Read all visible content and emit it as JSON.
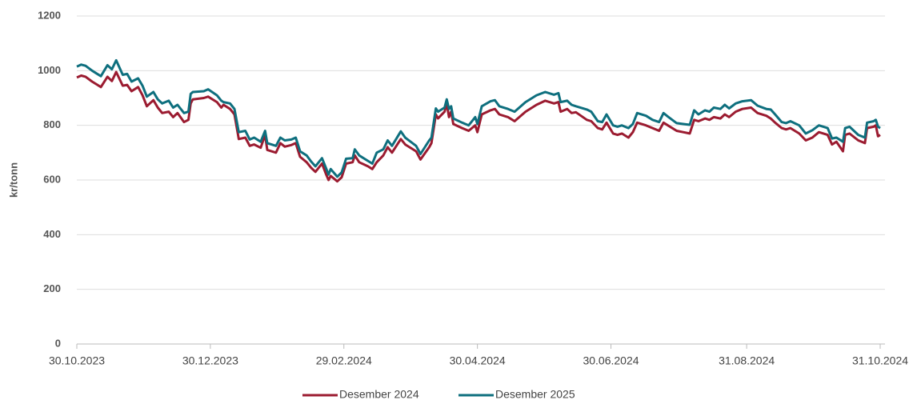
{
  "chart_data": {
    "type": "line",
    "y_label": "kr/tonn",
    "ylim": [
      0,
      1200
    ],
    "yticks": [
      0,
      200,
      400,
      600,
      800,
      1000,
      1200
    ],
    "xlim": [
      "30.10.2023",
      "31.10.2024"
    ],
    "xticks": [
      "30.10.2023",
      "30.12.2023",
      "29.02.2024",
      "30.04.2024",
      "30.06.2024",
      "31.08.2024",
      "31.10.2024"
    ],
    "grid": true,
    "legend": "bottom",
    "x": [
      "30.10.2023",
      "01.11.2023",
      "03.11.2023",
      "06.11.2023",
      "08.11.2023",
      "10.11.2023",
      "13.11.2023",
      "15.11.2023",
      "17.11.2023",
      "20.11.2023",
      "22.11.2023",
      "24.11.2023",
      "27.11.2023",
      "29.11.2023",
      "01.12.2023",
      "04.12.2023",
      "06.12.2023",
      "08.12.2023",
      "11.12.2023",
      "13.12.2023",
      "15.12.2023",
      "18.12.2023",
      "20.12.2023",
      "21.12.2023",
      "22.12.2023",
      "27.12.2023",
      "29.12.2023",
      "02.01.2024",
      "04.01.2024",
      "05.01.2024",
      "08.01.2024",
      "10.01.2024",
      "12.01.2024",
      "15.01.2024",
      "17.01.2024",
      "19.01.2024",
      "22.01.2024",
      "24.01.2024",
      "25.01.2024",
      "29.01.2024",
      "31.01.2024",
      "02.02.2024",
      "05.02.2024",
      "07.02.2024",
      "09.02.2024",
      "12.02.2024",
      "14.02.2024",
      "16.02.2024",
      "19.02.2024",
      "21.02.2024",
      "22.02.2024",
      "23.02.2024",
      "26.02.2024",
      "28.02.2024",
      "01.03.2024",
      "04.03.2024",
      "05.03.2024",
      "07.03.2024",
      "11.03.2024",
      "13.03.2024",
      "15.03.2024",
      "18.03.2024",
      "20.03.2024",
      "22.03.2024",
      "26.03.2024",
      "28.03.2024",
      "02.04.2024",
      "04.04.2024",
      "08.04.2024",
      "09.04.2024",
      "11.04.2024",
      "12.04.2024",
      "15.04.2024",
      "16.04.2024",
      "17.04.2024",
      "18.04.2024",
      "19.04.2024",
      "23.04.2024",
      "26.04.2024",
      "29.04.2024",
      "30.04.2024",
      "02.05.2024",
      "06.05.2024",
      "08.05.2024",
      "10.05.2024",
      "14.05.2024",
      "17.05.2024",
      "22.05.2024",
      "27.05.2024",
      "31.05.2024",
      "04.06.2024",
      "06.06.2024",
      "07.06.2024",
      "10.06.2024",
      "12.06.2024",
      "14.06.2024",
      "19.06.2024",
      "21.06.2024",
      "24.06.2024",
      "26.06.2024",
      "28.06.2024",
      "01.07.2024",
      "03.07.2024",
      "05.07.2024",
      "08.07.2024",
      "10.07.2024",
      "12.07.2024",
      "16.07.2024",
      "19.07.2024",
      "22.07.2024",
      "24.07.2024",
      "26.07.2024",
      "30.07.2024",
      "02.08.2024",
      "05.08.2024",
      "07.08.2024",
      "09.08.2024",
      "12.08.2024",
      "14.08.2024",
      "16.08.2024",
      "19.08.2024",
      "21.08.2024",
      "23.08.2024",
      "26.08.2024",
      "29.08.2024",
      "02.09.2024",
      "05.09.2024",
      "09.09.2024",
      "11.09.2024",
      "13.09.2024",
      "16.09.2024",
      "18.09.2024",
      "20.09.2024",
      "24.09.2024",
      "27.09.2024",
      "30.09.2024",
      "03.10.2024",
      "07.10.2024",
      "09.10.2024",
      "11.10.2024",
      "14.10.2024",
      "15.10.2024",
      "17.10.2024",
      "21.10.2024",
      "24.10.2024",
      "25.10.2024",
      "28.10.2024",
      "29.10.2024",
      "30.10.2024",
      "31.10.2024"
    ],
    "series": [
      {
        "name": "Desember 2024",
        "color": "#9b1b30",
        "values": [
          975,
          982,
          978,
          960,
          950,
          940,
          978,
          962,
          995,
          945,
          948,
          925,
          940,
          910,
          870,
          892,
          865,
          845,
          850,
          830,
          845,
          812,
          820,
          880,
          895,
          900,
          905,
          885,
          865,
          875,
          860,
          840,
          750,
          755,
          725,
          730,
          718,
          765,
          710,
          700,
          735,
          722,
          728,
          735,
          685,
          665,
          645,
          630,
          660,
          618,
          600,
          615,
          595,
          610,
          660,
          665,
          690,
          665,
          650,
          640,
          665,
          690,
          720,
          700,
          750,
          730,
          705,
          675,
          720,
          735,
          840,
          825,
          850,
          880,
          830,
          850,
          805,
          790,
          780,
          800,
          775,
          840,
          855,
          860,
          840,
          830,
          815,
          850,
          875,
          890,
          880,
          885,
          850,
          860,
          845,
          848,
          820,
          815,
          790,
          785,
          810,
          770,
          765,
          770,
          755,
          775,
          810,
          800,
          790,
          780,
          810,
          800,
          780,
          775,
          770,
          820,
          815,
          825,
          820,
          830,
          825,
          840,
          830,
          850,
          860,
          865,
          845,
          835,
          825,
          810,
          790,
          785,
          790,
          770,
          745,
          755,
          775,
          765,
          730,
          740,
          705,
          765,
          770,
          745,
          735,
          790,
          795,
          800,
          760,
          765
        ]
      },
      {
        "name": "Desember 2025",
        "color": "#0e6f7e",
        "values": [
          1015,
          1022,
          1018,
          1000,
          990,
          980,
          1020,
          1005,
          1038,
          985,
          988,
          960,
          972,
          945,
          905,
          922,
          895,
          880,
          890,
          865,
          875,
          845,
          850,
          915,
          922,
          925,
          932,
          910,
          890,
          885,
          880,
          860,
          775,
          780,
          748,
          755,
          740,
          780,
          735,
          725,
          755,
          745,
          748,
          755,
          705,
          690,
          668,
          650,
          680,
          640,
          620,
          640,
          612,
          628,
          678,
          680,
          712,
          690,
          670,
          660,
          700,
          712,
          745,
          725,
          778,
          755,
          725,
          695,
          745,
          755,
          862,
          850,
          865,
          895,
          860,
          870,
          825,
          810,
          800,
          830,
          805,
          870,
          888,
          892,
          870,
          860,
          850,
          885,
          910,
          922,
          912,
          918,
          885,
          890,
          875,
          870,
          858,
          850,
          815,
          812,
          840,
          800,
          795,
          800,
          790,
          805,
          845,
          835,
          820,
          812,
          845,
          832,
          808,
          805,
          802,
          855,
          840,
          855,
          850,
          865,
          860,
          875,
          862,
          880,
          888,
          892,
          872,
          860,
          858,
          840,
          812,
          808,
          815,
          800,
          770,
          782,
          800,
          790,
          752,
          755,
          740,
          790,
          795,
          765,
          755,
          810,
          815,
          820,
          795,
          790
        ]
      }
    ]
  }
}
